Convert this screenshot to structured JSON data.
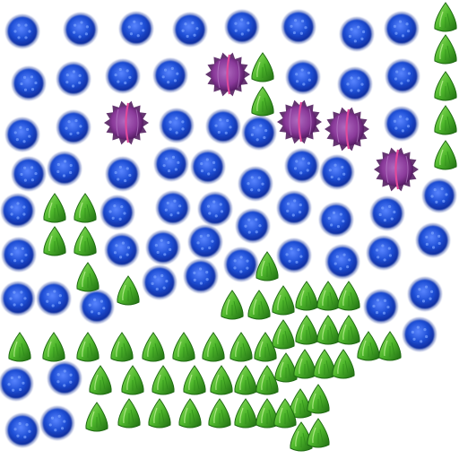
{
  "scene": "sprite-field",
  "palette": {
    "background": "#ffffff",
    "blue_blob": "#1f4fd6",
    "blue_blob_dark": "#0d2a9a",
    "blue_blob_light": "#5a86ff",
    "green_seed": "#4fb82c",
    "green_seed_dark": "#1f6b12",
    "green_seed_light": "#9be36a",
    "purple_spore": "#8a3a9a",
    "purple_spore_dark": "#4a1458",
    "purple_spore_seam": "#e0489a"
  },
  "sprite_types": [
    {
      "id": "blue-blob",
      "icon": "blue-blob-icon"
    },
    {
      "id": "green-seed",
      "icon": "green-seed-icon"
    },
    {
      "id": "purple-spore",
      "icon": "purple-spore-icon"
    }
  ]
}
